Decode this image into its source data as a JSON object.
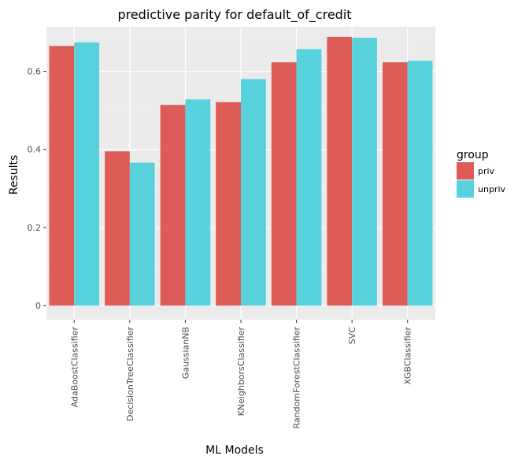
{
  "chart_data": {
    "type": "bar",
    "title": "predictive parity for default_of_credit",
    "xlabel": "ML Models",
    "ylabel": "Results",
    "categories": [
      "AdaBoostClassifier",
      "DecisionTreeClassifier",
      "GaussianNB",
      "KNeighborsClassifier",
      "RandomForestClassifier",
      "SVC",
      "XGBClassifier"
    ],
    "series": [
      {
        "name": "priv",
        "color": "#de5c57",
        "values": [
          0.665,
          0.395,
          0.514,
          0.521,
          0.623,
          0.688,
          0.623
        ]
      },
      {
        "name": "unpriv",
        "color": "#57d2dc",
        "values": [
          0.674,
          0.366,
          0.528,
          0.58,
          0.657,
          0.686,
          0.627
        ]
      }
    ],
    "ylim": [
      -0.036,
      0.714
    ],
    "yticks": [
      0,
      0.2,
      0.4,
      0.6
    ],
    "ytick_labels": [
      "0",
      "0.2",
      "0.4",
      "0.6"
    ],
    "grid": true,
    "legend": {
      "title": "group",
      "placement": "right"
    },
    "background": "#ebebeb"
  }
}
